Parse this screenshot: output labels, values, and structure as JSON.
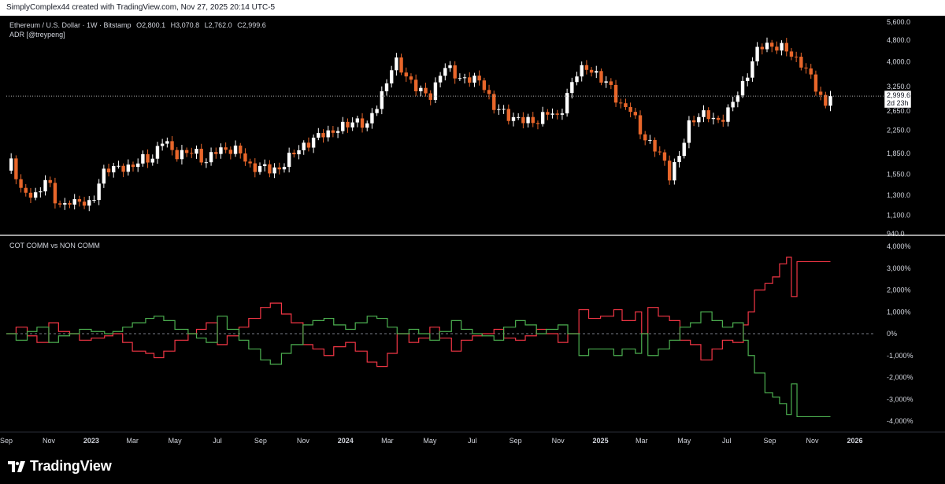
{
  "header": {
    "attribution": "SimplyComplex44 created with TradingView.com, Nov 27, 2025 20:14 UTC-5"
  },
  "footer": {
    "brand": "TradingView"
  },
  "colors": {
    "up": "#ffffff",
    "down": "#e8662a",
    "comm": "#f23645",
    "noncomm": "#4caf50",
    "separator": "#ffffff"
  },
  "chart_data": [
    {
      "type": "candlestick",
      "title": "Ethereum / U.S. Dollar · 1W · Bitstamp",
      "ohlc_legend": {
        "open": "O2,800.1",
        "high": "H3,070.8",
        "low": "L2,762.0",
        "close": "C2,999.6"
      },
      "indicator_label": "ADR [@treypeng]",
      "last_price_label": "2,999.6",
      "countdown_label": "2d 23h",
      "y_scale": "log",
      "y_ticks": [
        5600,
        4800,
        4000,
        3250,
        2650,
        2250,
        1850,
        1550,
        1300,
        1100,
        940
      ],
      "y_tick_labels": [
        "5,600.0",
        "4,800.0",
        "4,000.0",
        "3,250.0",
        "2,650.0",
        "2,250.0",
        "1,850.0",
        "1,550.0",
        "1,300.0",
        "1,100.0",
        "940.0"
      ],
      "x_range": [
        "2022-09-01",
        "2026-01-31"
      ],
      "close_path": [
        [
          "2022-09-01",
          1600
        ],
        [
          "2022-09-10",
          1750
        ],
        [
          "2022-09-20",
          1400
        ],
        [
          "2022-10-01",
          1300
        ],
        [
          "2022-10-15",
          1270
        ],
        [
          "2022-10-29",
          1580
        ],
        [
          "2022-11-08",
          1250
        ],
        [
          "2022-11-20",
          1150
        ],
        [
          "2022-12-01",
          1270
        ],
        [
          "2022-12-20",
          1200
        ],
        [
          "2023-01-01",
          1200
        ],
        [
          "2023-01-15",
          1560
        ],
        [
          "2023-02-01",
          1620
        ],
        [
          "2023-02-15",
          1680
        ],
        [
          "2023-03-01",
          1620
        ],
        [
          "2023-03-15",
          1780
        ],
        [
          "2023-04-01",
          1800
        ],
        [
          "2023-04-15",
          2080
        ],
        [
          "2023-05-01",
          1860
        ],
        [
          "2023-05-15",
          1830
        ],
        [
          "2023-06-01",
          1880
        ],
        [
          "2023-06-15",
          1720
        ],
        [
          "2023-07-01",
          1900
        ],
        [
          "2023-07-15",
          1940
        ],
        [
          "2023-08-01",
          1870
        ],
        [
          "2023-08-15",
          1680
        ],
        [
          "2023-09-01",
          1640
        ],
        [
          "2023-09-15",
          1600
        ],
        [
          "2023-10-01",
          1660
        ],
        [
          "2023-10-15",
          1800
        ],
        [
          "2023-11-01",
          2000
        ],
        [
          "2023-11-15",
          2050
        ],
        [
          "2023-12-01",
          2200
        ],
        [
          "2023-12-15",
          2250
        ],
        [
          "2024-01-01",
          2300
        ],
        [
          "2024-01-15",
          2500
        ],
        [
          "2024-02-01",
          2300
        ],
        [
          "2024-02-15",
          2800
        ],
        [
          "2024-03-01",
          3450
        ],
        [
          "2024-03-12",
          4000
        ],
        [
          "2024-04-01",
          3500
        ],
        [
          "2024-04-15",
          3100
        ],
        [
          "2024-05-01",
          3000
        ],
        [
          "2024-05-20",
          3800
        ],
        [
          "2024-06-01",
          3700
        ],
        [
          "2024-06-15",
          3500
        ],
        [
          "2024-07-01",
          3400
        ],
        [
          "2024-07-15",
          3450
        ],
        [
          "2024-08-01",
          2700
        ],
        [
          "2024-08-15",
          2600
        ],
        [
          "2024-09-01",
          2500
        ],
        [
          "2024-09-15",
          2400
        ],
        [
          "2024-10-01",
          2450
        ],
        [
          "2024-10-15",
          2600
        ],
        [
          "2024-11-01",
          2500
        ],
        [
          "2024-11-15",
          3100
        ],
        [
          "2024-12-01",
          3700
        ],
        [
          "2024-12-15",
          3900
        ],
        [
          "2025-01-01",
          3400
        ],
        [
          "2025-01-15",
          3300
        ],
        [
          "2025-02-01",
          2700
        ],
        [
          "2025-02-15",
          2650
        ],
        [
          "2025-03-01",
          2200
        ],
        [
          "2025-03-15",
          1950
        ],
        [
          "2025-04-01",
          1800
        ],
        [
          "2025-04-10",
          1550
        ],
        [
          "2025-04-25",
          1800
        ],
        [
          "2025-05-10",
          2500
        ],
        [
          "2025-06-01",
          2550
        ],
        [
          "2025-06-15",
          2450
        ],
        [
          "2025-07-01",
          2550
        ],
        [
          "2025-07-15",
          3000
        ],
        [
          "2025-08-01",
          3700
        ],
        [
          "2025-08-15",
          4400
        ],
        [
          "2025-08-25",
          4700
        ],
        [
          "2025-09-15",
          4500
        ],
        [
          "2025-10-01",
          4300
        ],
        [
          "2025-10-15",
          4000
        ],
        [
          "2025-11-01",
          3400
        ],
        [
          "2025-11-20",
          2800
        ],
        [
          "2025-11-27",
          2999.6
        ]
      ]
    },
    {
      "type": "step-line",
      "title": "COT COMM vs NON COMM",
      "y_unit": "%",
      "y_ticks": [
        4000,
        3000,
        2000,
        1000,
        0,
        -1000,
        -2000,
        -3000,
        -4000
      ],
      "y_tick_labels": [
        "4,000%",
        "3,000%",
        "2,000%",
        "1,000%",
        "0%",
        "-1,000%",
        "-2,000%",
        "-3,000%",
        "-4,000%"
      ],
      "x_tick_labels": [
        "Sep",
        "Nov",
        "2023",
        "Mar",
        "May",
        "Jul",
        "Sep",
        "Nov",
        "2024",
        "Mar",
        "May",
        "Jul",
        "Sep",
        "Nov",
        "2025",
        "Mar",
        "May",
        "Jul",
        "Sep",
        "Nov",
        "2026"
      ],
      "x_tick_dates": [
        "2022-09-01",
        "2022-11-01",
        "2023-01-01",
        "2023-03-01",
        "2023-05-01",
        "2023-07-01",
        "2023-09-01",
        "2023-11-01",
        "2024-01-01",
        "2024-03-01",
        "2024-05-01",
        "2024-07-01",
        "2024-09-01",
        "2024-11-01",
        "2025-01-01",
        "2025-03-01",
        "2025-05-01",
        "2025-07-01",
        "2025-09-01",
        "2025-11-01",
        "2026-01-01"
      ],
      "series": [
        {
          "name": "COMM",
          "color": "#f23645",
          "points": [
            [
              "2022-09-01",
              0
            ],
            [
              "2022-09-15",
              300
            ],
            [
              "2022-10-01",
              -100
            ],
            [
              "2022-10-15",
              -400
            ],
            [
              "2022-11-01",
              500
            ],
            [
              "2022-11-15",
              100
            ],
            [
              "2022-12-01",
              0
            ],
            [
              "2022-12-15",
              -300
            ],
            [
              "2023-01-01",
              -200
            ],
            [
              "2023-01-20",
              -100
            ],
            [
              "2023-02-01",
              0
            ],
            [
              "2023-02-15",
              -400
            ],
            [
              "2023-03-01",
              -800
            ],
            [
              "2023-03-20",
              -900
            ],
            [
              "2023-04-01",
              -1100
            ],
            [
              "2023-04-15",
              -800
            ],
            [
              "2023-05-01",
              -300
            ],
            [
              "2023-05-20",
              0
            ],
            [
              "2023-06-01",
              200
            ],
            [
              "2023-06-15",
              500
            ],
            [
              "2023-07-01",
              -500
            ],
            [
              "2023-07-15",
              -100
            ],
            [
              "2023-08-01",
              300
            ],
            [
              "2023-08-15",
              700
            ],
            [
              "2023-09-01",
              1200
            ],
            [
              "2023-09-15",
              1400
            ],
            [
              "2023-10-01",
              900
            ],
            [
              "2023-10-15",
              500
            ],
            [
              "2023-11-01",
              -500
            ],
            [
              "2023-11-15",
              -700
            ],
            [
              "2023-12-01",
              -1000
            ],
            [
              "2023-12-15",
              -600
            ],
            [
              "2024-01-01",
              -400
            ],
            [
              "2024-01-15",
              -800
            ],
            [
              "2024-02-01",
              -1300
            ],
            [
              "2024-02-15",
              -1500
            ],
            [
              "2024-03-01",
              -900
            ],
            [
              "2024-03-15",
              0
            ],
            [
              "2024-04-01",
              -400
            ],
            [
              "2024-04-15",
              -200
            ],
            [
              "2024-05-01",
              300
            ],
            [
              "2024-05-15",
              -200
            ],
            [
              "2024-06-01",
              -800
            ],
            [
              "2024-06-15",
              -300
            ],
            [
              "2024-07-01",
              -100
            ],
            [
              "2024-07-15",
              0
            ],
            [
              "2024-08-01",
              200
            ],
            [
              "2024-08-15",
              -200
            ],
            [
              "2024-09-01",
              -300
            ],
            [
              "2024-09-15",
              -100
            ],
            [
              "2024-10-01",
              200
            ],
            [
              "2024-10-15",
              0
            ],
            [
              "2024-11-01",
              -400
            ],
            [
              "2024-11-15",
              0
            ],
            [
              "2024-12-01",
              1100
            ],
            [
              "2024-12-15",
              700
            ],
            [
              "2025-01-01",
              800
            ],
            [
              "2025-01-20",
              1100
            ],
            [
              "2025-02-01",
              600
            ],
            [
              "2025-02-20",
              1000
            ],
            [
              "2025-03-01",
              0
            ],
            [
              "2025-03-10",
              1200
            ],
            [
              "2025-03-25",
              800
            ],
            [
              "2025-04-10",
              600
            ],
            [
              "2025-04-25",
              -300
            ],
            [
              "2025-05-10",
              -500
            ],
            [
              "2025-05-25",
              -1200
            ],
            [
              "2025-06-10",
              -700
            ],
            [
              "2025-06-25",
              -300
            ],
            [
              "2025-07-10",
              -400
            ],
            [
              "2025-07-25",
              400
            ],
            [
              "2025-08-01",
              1000
            ],
            [
              "2025-08-10",
              2000
            ],
            [
              "2025-08-25",
              2300
            ],
            [
              "2025-09-05",
              2600
            ],
            [
              "2025-09-15",
              3200
            ],
            [
              "2025-09-25",
              3500
            ],
            [
              "2025-10-02",
              1700
            ],
            [
              "2025-10-10",
              3300
            ],
            [
              "2025-11-01",
              3300
            ],
            [
              "2025-11-27",
              3300
            ]
          ]
        },
        {
          "name": "NON COMM",
          "color": "#4caf50",
          "points": [
            [
              "2022-09-01",
              0
            ],
            [
              "2022-09-15",
              -300
            ],
            [
              "2022-10-01",
              100
            ],
            [
              "2022-10-15",
              300
            ],
            [
              "2022-11-01",
              -400
            ],
            [
              "2022-11-15",
              -100
            ],
            [
              "2022-12-01",
              0
            ],
            [
              "2022-12-15",
              200
            ],
            [
              "2023-01-01",
              100
            ],
            [
              "2023-01-20",
              0
            ],
            [
              "2023-02-01",
              100
            ],
            [
              "2023-02-15",
              300
            ],
            [
              "2023-03-01",
              500
            ],
            [
              "2023-03-20",
              700
            ],
            [
              "2023-04-01",
              800
            ],
            [
              "2023-04-15",
              600
            ],
            [
              "2023-05-01",
              200
            ],
            [
              "2023-05-20",
              0
            ],
            [
              "2023-06-01",
              -200
            ],
            [
              "2023-06-15",
              -400
            ],
            [
              "2023-07-01",
              800
            ],
            [
              "2023-07-15",
              200
            ],
            [
              "2023-08-01",
              -300
            ],
            [
              "2023-08-15",
              -700
            ],
            [
              "2023-09-01",
              -1200
            ],
            [
              "2023-09-15",
              -1400
            ],
            [
              "2023-10-01",
              -900
            ],
            [
              "2023-10-15",
              -500
            ],
            [
              "2023-11-01",
              400
            ],
            [
              "2023-11-15",
              600
            ],
            [
              "2023-12-01",
              700
            ],
            [
              "2023-12-15",
              400
            ],
            [
              "2024-01-01",
              200
            ],
            [
              "2024-01-15",
              500
            ],
            [
              "2024-02-01",
              800
            ],
            [
              "2024-02-15",
              700
            ],
            [
              "2024-03-01",
              300
            ],
            [
              "2024-03-15",
              0
            ],
            [
              "2024-04-01",
              200
            ],
            [
              "2024-04-15",
              0
            ],
            [
              "2024-05-01",
              -300
            ],
            [
              "2024-05-15",
              100
            ],
            [
              "2024-06-01",
              600
            ],
            [
              "2024-06-15",
              200
            ],
            [
              "2024-07-01",
              0
            ],
            [
              "2024-07-15",
              -100
            ],
            [
              "2024-08-01",
              -300
            ],
            [
              "2024-08-15",
              300
            ],
            [
              "2024-09-01",
              600
            ],
            [
              "2024-09-15",
              400
            ],
            [
              "2024-10-01",
              0
            ],
            [
              "2024-10-15",
              200
            ],
            [
              "2024-11-01",
              400
            ],
            [
              "2024-11-15",
              0
            ],
            [
              "2024-12-01",
              -1000
            ],
            [
              "2024-12-15",
              -700
            ],
            [
              "2025-01-01",
              -700
            ],
            [
              "2025-01-20",
              -1000
            ],
            [
              "2025-02-01",
              -700
            ],
            [
              "2025-02-20",
              -900
            ],
            [
              "2025-03-01",
              0
            ],
            [
              "2025-03-10",
              -1000
            ],
            [
              "2025-03-25",
              -700
            ],
            [
              "2025-04-10",
              -300
            ],
            [
              "2025-04-25",
              300
            ],
            [
              "2025-05-10",
              500
            ],
            [
              "2025-05-25",
              1000
            ],
            [
              "2025-06-10",
              600
            ],
            [
              "2025-06-25",
              300
            ],
            [
              "2025-07-10",
              500
            ],
            [
              "2025-07-25",
              -300
            ],
            [
              "2025-08-01",
              -1000
            ],
            [
              "2025-08-10",
              -1800
            ],
            [
              "2025-08-25",
              -2700
            ],
            [
              "2025-09-05",
              -2900
            ],
            [
              "2025-09-15",
              -3200
            ],
            [
              "2025-09-25",
              -3700
            ],
            [
              "2025-10-02",
              -2300
            ],
            [
              "2025-10-10",
              -3800
            ],
            [
              "2025-11-01",
              -3800
            ],
            [
              "2025-11-27",
              -3800
            ]
          ]
        }
      ]
    }
  ]
}
